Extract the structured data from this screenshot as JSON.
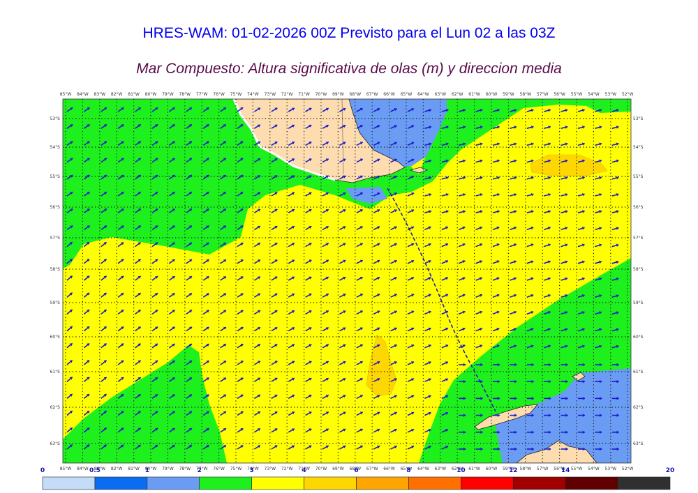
{
  "header": {
    "title": "HRES-WAM: 01-02-2026 00Z Previsto para el Lun 02 a las 03Z",
    "subtitle": "Mar Compuesto: Altura significativa de olas (m) y direccion media"
  },
  "map": {
    "lon_labels": [
      "85°W",
      "84°W",
      "83°W",
      "82°W",
      "81°W",
      "80°W",
      "79°W",
      "78°W",
      "77°W",
      "76°W",
      "75°W",
      "74°W",
      "73°W",
      "72°W",
      "71°W",
      "70°W",
      "69°W",
      "68°W",
      "67°W",
      "66°W",
      "65°W",
      "64°W",
      "63°W",
      "62°W",
      "61°W",
      "60°W",
      "59°W",
      "58°W",
      "57°W",
      "56°W",
      "55°W",
      "54°W",
      "53°W",
      "52°W"
    ],
    "lat_labels": [
      "53°S",
      "54°S",
      "55°S",
      "56°S",
      "57°S",
      "58°S",
      "59°S",
      "60°S",
      "61°S",
      "62°S",
      "63°S"
    ],
    "colors": {
      "land": "#fddcb0",
      "arrow": "#1a1acc",
      "wave_1_2": "#6a9cf4",
      "wave_2_3": "#1ef01e",
      "wave_3_4": "#ffff00",
      "wave_4_5": "#ffd700"
    }
  },
  "colorbar": {
    "labels": [
      "0",
      "0.5",
      "1",
      "2",
      "3",
      "4",
      "6",
      "8",
      "10",
      "12",
      "14",
      "20"
    ],
    "colors": [
      "#c4dcf8",
      "#0a6cf0",
      "#6a9cf4",
      "#1ef01e",
      "#ffff00",
      "#ffd700",
      "#ffa500",
      "#ff7000",
      "#ff0000",
      "#a00000",
      "#600000",
      "#303030"
    ]
  }
}
